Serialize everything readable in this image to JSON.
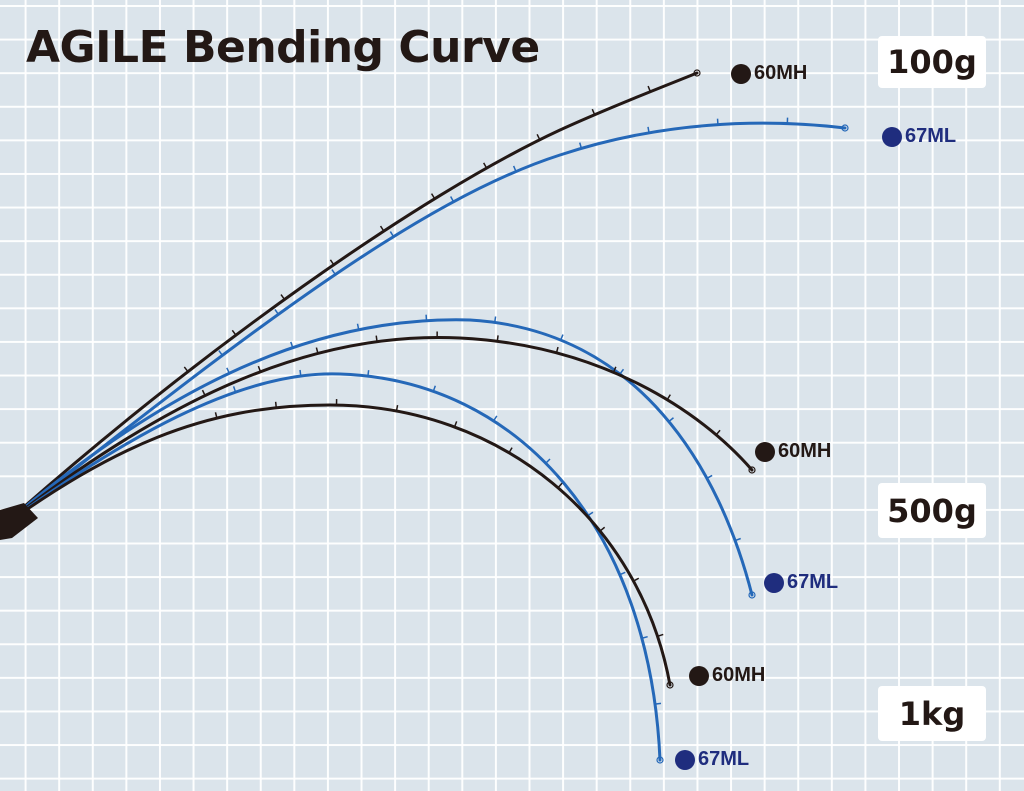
{
  "title": "AGILE Bending Curve",
  "loads": [
    "100g",
    "500g",
    "1kg"
  ],
  "rods": [
    {
      "model": "60MH",
      "color": "#231815"
    },
    {
      "model": "67ML",
      "color": "#2568b8"
    }
  ],
  "label_dot_colors": {
    "60MH": "#231815",
    "67ML": "#1f2d7e"
  },
  "curves": [
    {
      "load": "100g",
      "model": "60MH"
    },
    {
      "load": "100g",
      "model": "67ML"
    },
    {
      "load": "500g",
      "model": "60MH"
    },
    {
      "load": "500g",
      "model": "67ML"
    },
    {
      "load": "1kg",
      "model": "60MH"
    },
    {
      "load": "1kg",
      "model": "67ML"
    }
  ]
}
